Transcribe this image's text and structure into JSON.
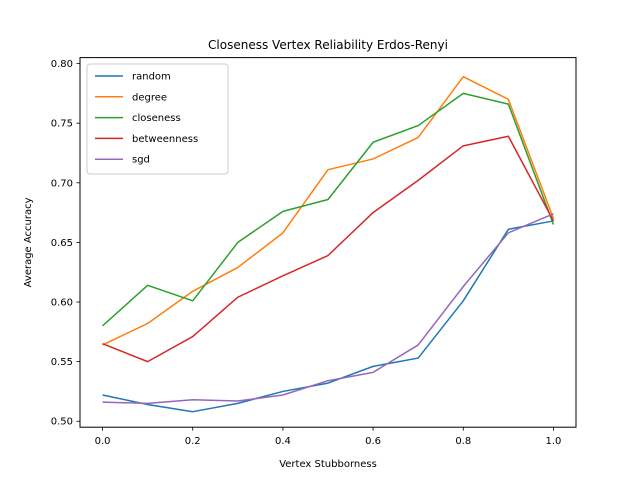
{
  "chart_data": {
    "type": "line",
    "title": "Closeness Vertex Reliability Erdos-Renyi",
    "xlabel": "Vertex Stubborness",
    "ylabel": "Average Accuracy",
    "x": [
      0.0,
      0.1,
      0.2,
      0.3,
      0.4,
      0.5,
      0.6,
      0.7,
      0.8,
      0.9,
      1.0
    ],
    "xlim": [
      -0.05,
      1.05
    ],
    "ylim": [
      0.495,
      0.805
    ],
    "xticks": [
      "0.0",
      "0.2",
      "0.4",
      "0.6",
      "0.8",
      "1.0"
    ],
    "yticks": [
      "0.50",
      "0.55",
      "0.60",
      "0.65",
      "0.70",
      "0.75",
      "0.80"
    ],
    "grid": false,
    "legend_position": "top-left",
    "series": [
      {
        "name": "random",
        "color": "#1f77b4",
        "values": [
          0.522,
          0.514,
          0.508,
          0.515,
          0.525,
          0.532,
          0.546,
          0.553,
          0.601,
          0.661,
          0.668
        ]
      },
      {
        "name": "degree",
        "color": "#ff7f0e",
        "values": [
          0.564,
          0.582,
          0.609,
          0.629,
          0.658,
          0.711,
          0.72,
          0.738,
          0.789,
          0.77,
          0.67
        ]
      },
      {
        "name": "closeness",
        "color": "#2ca02c",
        "values": [
          0.58,
          0.614,
          0.601,
          0.65,
          0.676,
          0.686,
          0.734,
          0.748,
          0.775,
          0.766,
          0.665
        ]
      },
      {
        "name": "betweenness",
        "color": "#d62728",
        "values": [
          0.565,
          0.55,
          0.571,
          0.604,
          0.622,
          0.639,
          0.675,
          0.702,
          0.731,
          0.739,
          0.668
        ]
      },
      {
        "name": "sgd",
        "color": "#9467bd",
        "values": [
          0.516,
          0.515,
          0.518,
          0.517,
          0.522,
          0.534,
          0.541,
          0.564,
          0.613,
          0.658,
          0.674
        ]
      }
    ]
  }
}
